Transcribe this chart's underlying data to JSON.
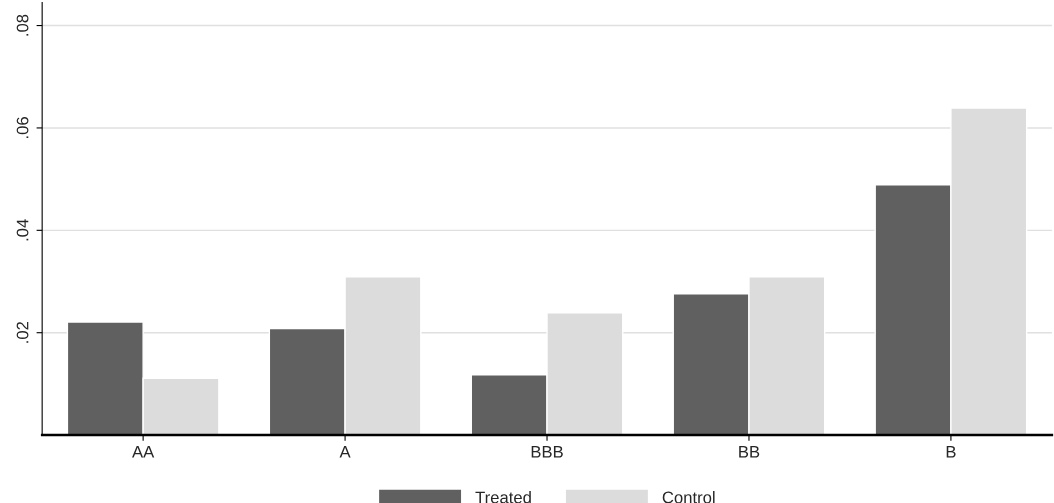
{
  "chart_data": {
    "type": "bar",
    "categories": [
      "AA",
      "A",
      "BBB",
      "BB",
      "B"
    ],
    "series": [
      {
        "name": "Treated",
        "color": "#606060",
        "values": [
          0.0221,
          0.0208,
          0.0118,
          0.0276,
          0.0489
        ]
      },
      {
        "name": "Control",
        "color": "#dcdcdc",
        "values": [
          0.0111,
          0.0309,
          0.0239,
          0.0309,
          0.0639
        ]
      }
    ],
    "ylim": [
      0,
      0.0845
    ],
    "yticks": [
      {
        "value": 0.02,
        "label": ".02"
      },
      {
        "value": 0.04,
        "label": ".04"
      },
      {
        "value": 0.06,
        "label": ".06"
      },
      {
        "value": 0.08,
        "label": ".08"
      }
    ],
    "grid": "y",
    "legend": "bottom"
  }
}
